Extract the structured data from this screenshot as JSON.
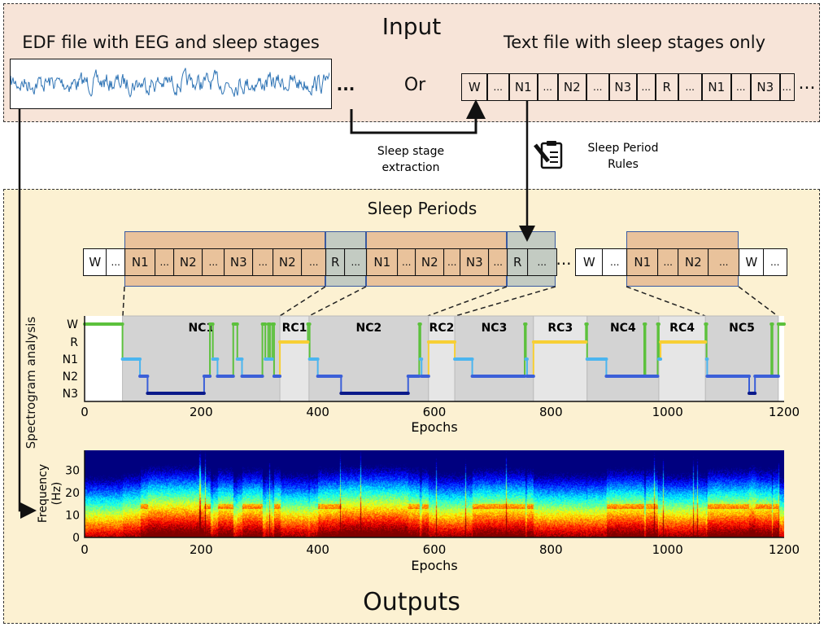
{
  "input": {
    "title": "Input",
    "edf_label": "EDF file with EEG and sleep stages",
    "text_label": "Text file with sleep stages only",
    "or_label": "Or",
    "ellipsis": "...",
    "text_cells": [
      "W",
      "...",
      "N1",
      "...",
      "N2",
      "...",
      "N3",
      "...",
      "R",
      "...",
      "N1",
      "...",
      "N3",
      "..."
    ]
  },
  "arrows": {
    "extraction_label": [
      "Sleep stage",
      "extraction"
    ],
    "rules_label": [
      "Sleep Period",
      "Rules"
    ],
    "rules_icon": "clipboard-pencil-icon"
  },
  "outputs": {
    "title": "Outputs",
    "periods_title": "Sleep Periods",
    "period_cells_a": [
      "W",
      "...",
      "N1",
      "...",
      "N2",
      "...",
      "N3",
      "...",
      "N2",
      "...",
      "R",
      "...",
      "N1",
      "...",
      "N2",
      "...",
      "N3",
      "...",
      "R",
      "..."
    ],
    "period_cells_b": [
      "W",
      "...",
      "N1",
      "...",
      "N2",
      "...",
      "W",
      "..."
    ],
    "gap": "...",
    "side_label": "Spectrogram analysis"
  },
  "colors": {
    "input_bg": "#f7e4d8",
    "output_bg": "#fcf1d2",
    "nrem_band": "#e9c29b",
    "rem_band": "#c3cbc2",
    "W": "#5cc13c",
    "R": "#f7cf34",
    "N1": "#4bb5ef",
    "N2": "#3b5fd8",
    "N3": "#0b1a8a",
    "nc_bg": "#d3d3d3",
    "rc_bg": "#e6e6e6"
  },
  "chart_data": [
    {
      "type": "line",
      "xlabel": "Epochs",
      "xlim": [
        0,
        1200
      ],
      "xticks": [
        "0",
        "200",
        "400",
        "600",
        "800",
        "1000",
        "1200"
      ],
      "yticks": [
        "W",
        "R",
        "N1",
        "N2",
        "N3"
      ],
      "cycles": [
        {
          "label": "NC1",
          "start": 65,
          "end": 335
        },
        {
          "label": "RC1",
          "start": 335,
          "end": 385
        },
        {
          "label": "NC2",
          "start": 385,
          "end": 590
        },
        {
          "label": "RC2",
          "start": 590,
          "end": 635
        },
        {
          "label": "NC3",
          "start": 635,
          "end": 770
        },
        {
          "label": "RC3",
          "start": 770,
          "end": 862
        },
        {
          "label": "NC4",
          "start": 862,
          "end": 985
        },
        {
          "label": "RC4",
          "start": 985,
          "end": 1065
        },
        {
          "label": "NC5",
          "start": 1065,
          "end": 1190
        }
      ],
      "hypnogram": [
        [
          0,
          65,
          "W"
        ],
        [
          65,
          95,
          "N1"
        ],
        [
          95,
          108,
          "N2"
        ],
        [
          108,
          205,
          "N3"
        ],
        [
          205,
          215,
          "N2"
        ],
        [
          215,
          220,
          "W"
        ],
        [
          220,
          228,
          "N1"
        ],
        [
          228,
          255,
          "N2"
        ],
        [
          255,
          262,
          "W"
        ],
        [
          262,
          270,
          "N1"
        ],
        [
          270,
          305,
          "N2"
        ],
        [
          305,
          310,
          "W"
        ],
        [
          310,
          315,
          "N1"
        ],
        [
          315,
          318,
          "W"
        ],
        [
          318,
          322,
          "N1"
        ],
        [
          322,
          325,
          "W"
        ],
        [
          325,
          335,
          "N2"
        ],
        [
          335,
          383,
          "R"
        ],
        [
          383,
          386,
          "W"
        ],
        [
          386,
          400,
          "N1"
        ],
        [
          400,
          440,
          "N2"
        ],
        [
          440,
          555,
          "N3"
        ],
        [
          555,
          574,
          "N2"
        ],
        [
          574,
          576,
          "W"
        ],
        [
          576,
          578,
          "N1"
        ],
        [
          578,
          590,
          "N2"
        ],
        [
          590,
          635,
          "R"
        ],
        [
          635,
          665,
          "N1"
        ],
        [
          665,
          755,
          "N2"
        ],
        [
          755,
          757,
          "W"
        ],
        [
          757,
          759,
          "N1"
        ],
        [
          759,
          770,
          "N2"
        ],
        [
          770,
          860,
          "R"
        ],
        [
          860,
          862,
          "W"
        ],
        [
          862,
          895,
          "N1"
        ],
        [
          895,
          960,
          "N2"
        ],
        [
          960,
          962,
          "W"
        ],
        [
          962,
          983,
          "N2"
        ],
        [
          983,
          985,
          "W"
        ],
        [
          985,
          988,
          "N1"
        ],
        [
          988,
          1065,
          "R"
        ],
        [
          1065,
          1067,
          "W"
        ],
        [
          1067,
          1068,
          "N1"
        ],
        [
          1068,
          1140,
          "N2"
        ],
        [
          1140,
          1150,
          "N3"
        ],
        [
          1150,
          1178,
          "N2"
        ],
        [
          1178,
          1180,
          "W"
        ],
        [
          1180,
          1190,
          "N2"
        ],
        [
          1190,
          1200,
          "W"
        ]
      ]
    },
    {
      "type": "heatmap",
      "xlabel": "Epochs",
      "ylabel": "Frequency (Hz)",
      "xlim": [
        0,
        1200
      ],
      "ylim": [
        0,
        39
      ],
      "xticks": [
        "0",
        "200",
        "400",
        "600",
        "800",
        "1000",
        "1200"
      ],
      "yticks": [
        "0",
        "10",
        "20",
        "30"
      ]
    }
  ]
}
